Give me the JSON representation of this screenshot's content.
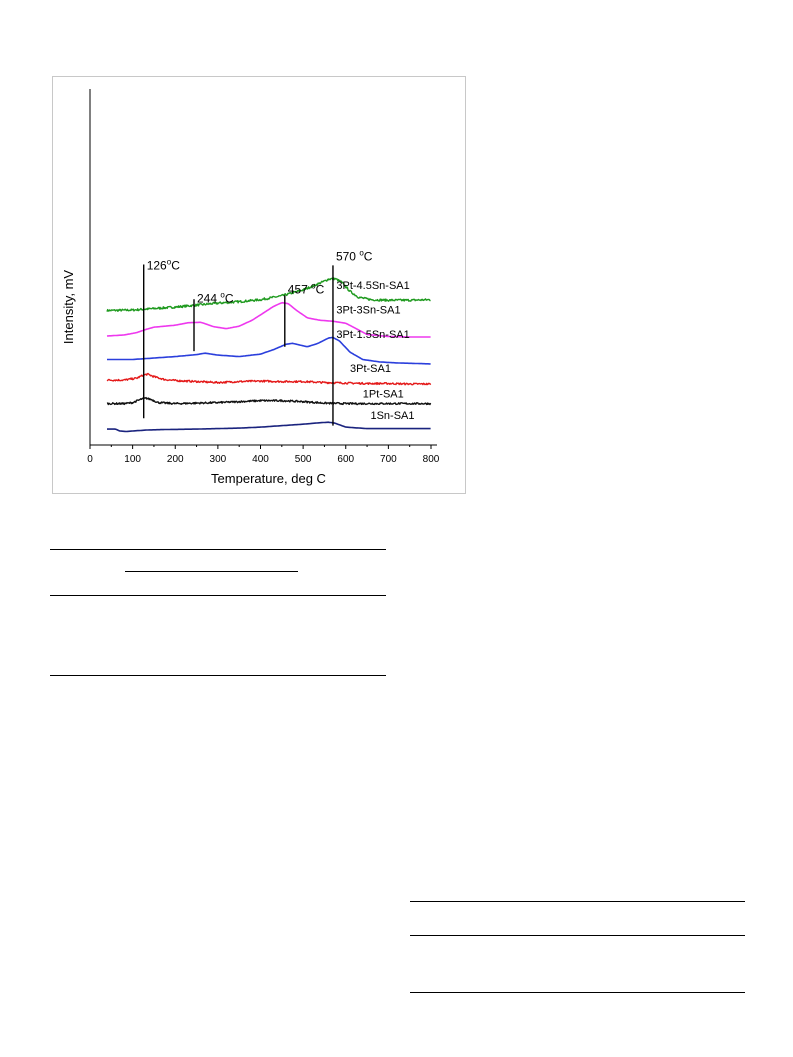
{
  "chart_data": {
    "type": "line",
    "xlabel": "Temperature, deg C",
    "ylabel": "Intensity, mV",
    "xlim": [
      0,
      800
    ],
    "xticks": [
      0,
      100,
      200,
      300,
      400,
      500,
      600,
      700,
      800
    ],
    "grid": false,
    "colors": {
      "3Pt-4.5Sn-SA1": "#1f9a1f",
      "3Pt-3Sn-SA1": "#ee38ee",
      "3Pt-1.5Sn-SA1": "#2b3fdc",
      "3Pt-SA1": "#e41a1a",
      "1Pt-SA1": "#111111",
      "1Sn-SA1": "#1a237e"
    },
    "series": [
      {
        "name": "3Pt-4.5Sn-SA1",
        "points": [
          [
            40,
            180
          ],
          [
            100,
            181
          ],
          [
            150,
            184
          ],
          [
            200,
            187
          ],
          [
            250,
            191
          ],
          [
            300,
            195
          ],
          [
            350,
            198
          ],
          [
            400,
            202
          ],
          [
            450,
            210
          ],
          [
            500,
            222
          ],
          [
            540,
            236
          ],
          [
            560,
            244
          ],
          [
            575,
            245
          ],
          [
            590,
            238
          ],
          [
            610,
            219
          ],
          [
            630,
            207
          ],
          [
            660,
            202
          ],
          [
            700,
            201
          ],
          [
            750,
            201
          ],
          [
            800,
            202
          ]
        ]
      },
      {
        "name": "3Pt-3Sn-SA1",
        "points": [
          [
            40,
            128
          ],
          [
            80,
            130
          ],
          [
            110,
            135
          ],
          [
            130,
            141
          ],
          [
            150,
            146
          ],
          [
            200,
            150
          ],
          [
            230,
            155
          ],
          [
            260,
            156
          ],
          [
            290,
            147
          ],
          [
            320,
            143
          ],
          [
            350,
            148
          ],
          [
            380,
            160
          ],
          [
            400,
            171
          ],
          [
            430,
            188
          ],
          [
            450,
            196
          ],
          [
            465,
            194
          ],
          [
            485,
            180
          ],
          [
            510,
            165
          ],
          [
            540,
            160
          ],
          [
            570,
            158
          ],
          [
            600,
            154
          ],
          [
            620,
            145
          ],
          [
            650,
            131
          ],
          [
            700,
            127
          ],
          [
            750,
            126
          ],
          [
            800,
            126
          ]
        ]
      },
      {
        "name": "3Pt-1.5Sn-SA1",
        "points": [
          [
            40,
            80
          ],
          [
            100,
            80
          ],
          [
            150,
            83
          ],
          [
            200,
            86
          ],
          [
            250,
            90
          ],
          [
            270,
            93
          ],
          [
            300,
            89
          ],
          [
            350,
            86
          ],
          [
            400,
            91
          ],
          [
            430,
            100
          ],
          [
            460,
            111
          ],
          [
            475,
            113
          ],
          [
            490,
            110
          ],
          [
            510,
            106
          ],
          [
            535,
            113
          ],
          [
            560,
            124
          ],
          [
            570,
            125
          ],
          [
            585,
            118
          ],
          [
            610,
            95
          ],
          [
            640,
            80
          ],
          [
            680,
            75
          ],
          [
            720,
            73
          ],
          [
            760,
            72
          ],
          [
            800,
            71
          ]
        ]
      },
      {
        "name": "3Pt-SA1",
        "points": [
          [
            40,
            38
          ],
          [
            80,
            38
          ],
          [
            110,
            42
          ],
          [
            125,
            48
          ],
          [
            135,
            50
          ],
          [
            150,
            45
          ],
          [
            175,
            39
          ],
          [
            200,
            37
          ],
          [
            250,
            35
          ],
          [
            300,
            33
          ],
          [
            350,
            35
          ],
          [
            400,
            36
          ],
          [
            450,
            35
          ],
          [
            500,
            35
          ],
          [
            550,
            33
          ],
          [
            600,
            32
          ],
          [
            650,
            31
          ],
          [
            700,
            31
          ],
          [
            750,
            30
          ],
          [
            800,
            30
          ]
        ]
      },
      {
        "name": "1Pt-SA1",
        "points": [
          [
            40,
            -10
          ],
          [
            80,
            -10
          ],
          [
            100,
            -8
          ],
          [
            120,
            -1
          ],
          [
            132,
            1
          ],
          [
            145,
            -2
          ],
          [
            160,
            -8
          ],
          [
            200,
            -10
          ],
          [
            250,
            -9
          ],
          [
            300,
            -8
          ],
          [
            350,
            -6
          ],
          [
            400,
            -4
          ],
          [
            450,
            -4
          ],
          [
            500,
            -6
          ],
          [
            550,
            -9
          ],
          [
            600,
            -10
          ],
          [
            650,
            -10
          ],
          [
            700,
            -10
          ],
          [
            750,
            -10
          ],
          [
            800,
            -10
          ]
        ]
      },
      {
        "name": "1Sn-SA1",
        "points": [
          [
            40,
            -62
          ],
          [
            60,
            -62
          ],
          [
            70,
            -66
          ],
          [
            85,
            -67
          ],
          [
            100,
            -66
          ],
          [
            130,
            -64
          ],
          [
            170,
            -63
          ],
          [
            250,
            -62
          ],
          [
            300,
            -61
          ],
          [
            350,
            -60
          ],
          [
            400,
            -58
          ],
          [
            450,
            -55
          ],
          [
            500,
            -52
          ],
          [
            540,
            -49
          ],
          [
            560,
            -48
          ],
          [
            575,
            -50
          ],
          [
            600,
            -58
          ],
          [
            650,
            -61
          ],
          [
            700,
            -61
          ],
          [
            750,
            -61
          ],
          [
            800,
            -61
          ]
        ]
      }
    ],
    "series_labels": [
      {
        "text": "3Pt-4.5Sn-SA1",
        "x": 578,
        "y": 224
      },
      {
        "text": "3Pt-3Sn-SA1",
        "x": 578,
        "y": 174
      },
      {
        "text": "3Pt-1.5Sn-SA1",
        "x": 578,
        "y": 124
      },
      {
        "text": "3Pt-SA1",
        "x": 610,
        "y": 55
      },
      {
        "text": "1Pt-SA1",
        "x": 640,
        "y": 2
      },
      {
        "text": "1Sn-SA1",
        "x": 658,
        "y": -41
      }
    ],
    "annotations": [
      {
        "text": "126",
        "sup": "o",
        "after": "C",
        "x": 126,
        "y_top": 274,
        "y_bottom": -40,
        "label_y": 264
      },
      {
        "text": "244 ",
        "sup": "o",
        "after": "C",
        "x": 244,
        "y_top": 203,
        "y_bottom": 97,
        "label_y": 196
      },
      {
        "text": "457 ",
        "sup": "o",
        "after": "C",
        "x": 457,
        "y_top": 211,
        "y_bottom": 106,
        "label_y": 215
      },
      {
        "text": "570 ",
        "sup": "o",
        "after": "C",
        "x": 570,
        "y_top": 272,
        "y_bottom": -55,
        "label_y": 282
      }
    ]
  }
}
